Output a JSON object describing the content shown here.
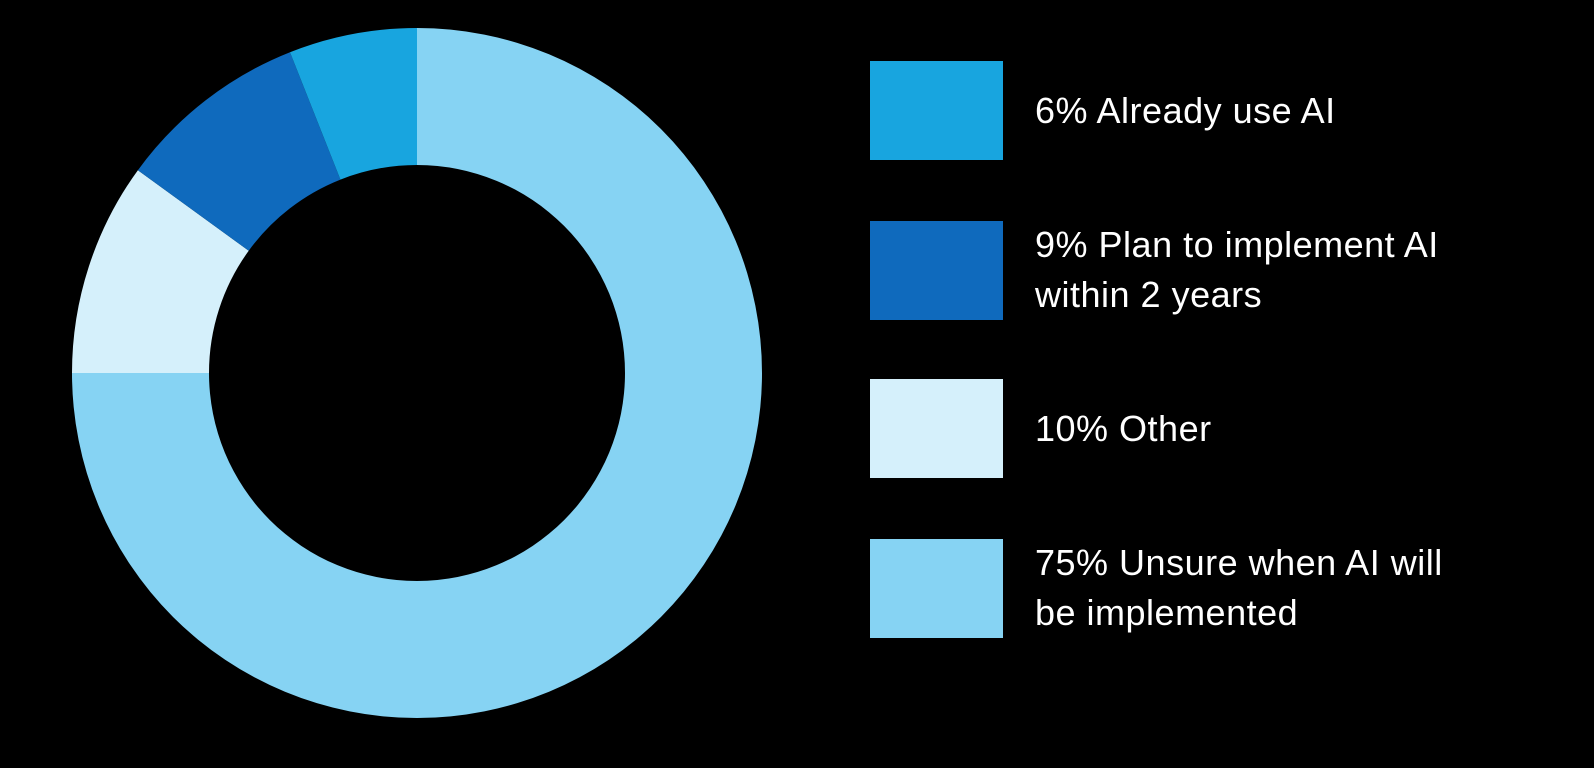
{
  "chart_data": {
    "type": "donut",
    "series": [
      {
        "name": "6% Already use AI",
        "color": "#18a5df",
        "value": 6
      },
      {
        "name": "9% Plan to implement AI within 2 years",
        "color": "#0f6abd",
        "value": 9
      },
      {
        "name": "10% Other",
        "color": "#d5f0fb",
        "value": 10
      },
      {
        "name": "75% Unsure when AI will be implemented",
        "color": "#86d3f3",
        "value": 75
      }
    ],
    "legend": "right"
  }
}
